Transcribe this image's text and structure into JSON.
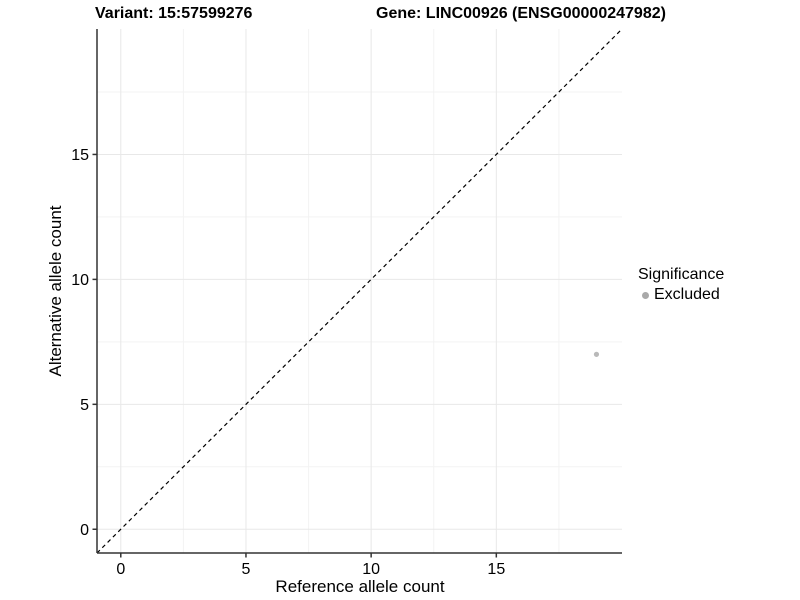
{
  "titles": {
    "variant": "Variant: 15:57599276",
    "gene": "Gene: LINC00926 (ENSG00000247982)"
  },
  "legend": {
    "title": "Significance",
    "items": [
      {
        "label": "Excluded",
        "color": "#a9a9a9",
        "marker": "dot"
      }
    ]
  },
  "chart_data": {
    "type": "scatter",
    "title": "Variant: 15:57599276 — Gene: LINC00926 (ENSG00000247982)",
    "xlabel": "Reference allele count",
    "ylabel": "Alternative allele count",
    "xlim": [
      -0.95,
      20.02
    ],
    "ylim": [
      -0.95,
      20.02
    ],
    "x_ticks": [
      0,
      5,
      10,
      15
    ],
    "y_ticks": [
      0,
      5,
      10,
      15
    ],
    "x_minor_ticks": [
      2.5,
      7.5,
      12.5,
      17.5
    ],
    "y_minor_ticks": [
      2.5,
      7.5,
      12.5,
      17.5
    ],
    "grid": true,
    "legend_position": "right",
    "series": [
      {
        "name": "Excluded",
        "points": [
          {
            "x": 19,
            "y": 7
          }
        ],
        "color": "#b9b9b9",
        "marker_radius": 2.6
      }
    ],
    "reference_line": {
      "type": "identity",
      "style": "dashed",
      "color": "#000000",
      "from": -0.95,
      "to": 20.02
    },
    "colors": {
      "background": "#ffffff",
      "grid_major": "#e8e8e8",
      "grid_minor": "#f3f3f3",
      "axis_line": "#333333",
      "tick_label": "#000000"
    }
  }
}
